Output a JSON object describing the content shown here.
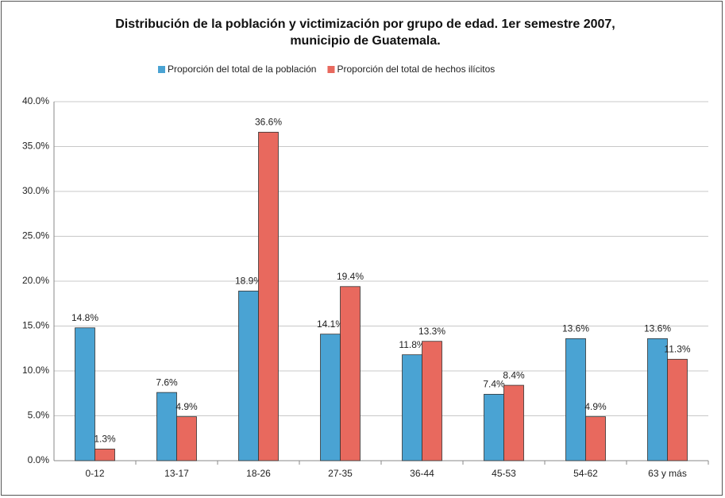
{
  "chart_data": {
    "type": "bar",
    "title": "Distribución de la población y victimización por grupo de edad. 1er semestre 2007, municipio de Guatemala.",
    "categories": [
      "0-12",
      "13-17",
      "18-26",
      "27-35",
      "36-44",
      "45-53",
      "54-62",
      "63 y más"
    ],
    "series": [
      {
        "name": "Proporción del total de la población",
        "color": "#4aa3d3",
        "values": [
          14.8,
          7.6,
          18.9,
          14.1,
          11.8,
          7.4,
          13.6,
          13.6
        ],
        "value_labels": [
          "14.8%",
          "7.6%",
          "18.9%",
          "14.1%",
          "11.8%",
          "7.4%",
          "13.6%",
          "13.6%"
        ]
      },
      {
        "name": "Proporción del total de hechos ilícitos",
        "color": "#e8695e",
        "values": [
          1.3,
          4.9,
          36.6,
          19.4,
          13.3,
          8.4,
          4.9,
          11.3
        ],
        "value_labels": [
          "1.3%",
          "4.9%",
          "36.6%",
          "19.4%",
          "13.3%",
          "8.4%",
          "4.9%",
          "11.3%"
        ]
      }
    ],
    "ylim": [
      0,
      40
    ],
    "yticks": [
      {
        "value": 0,
        "label": "0.0%"
      },
      {
        "value": 5,
        "label": "5.0%"
      },
      {
        "value": 10,
        "label": "10.0%"
      },
      {
        "value": 15,
        "label": "15.0%"
      },
      {
        "value": 20,
        "label": "20.0%"
      },
      {
        "value": 25,
        "label": "25.0%"
      },
      {
        "value": 30,
        "label": "30.0%"
      },
      {
        "value": 35,
        "label": "35.0%"
      },
      {
        "value": 40,
        "label": "40.0%"
      }
    ],
    "grid": true,
    "legend": "top"
  }
}
